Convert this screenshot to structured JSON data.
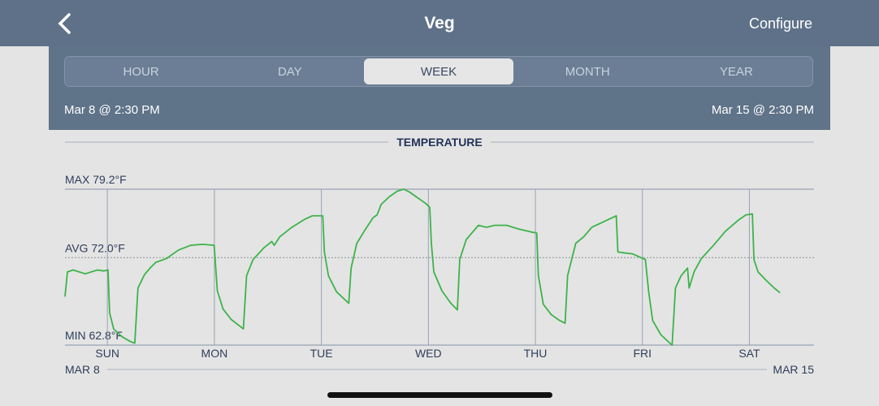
{
  "header": {
    "title": "Veg",
    "action": "Configure"
  },
  "tabs": {
    "items": [
      "HOUR",
      "DAY",
      "WEEK",
      "MONTH",
      "YEAR"
    ],
    "selected": 2
  },
  "range": {
    "start": "Mar 8 @ 2:30 PM",
    "end": "Mar 15 @ 2:30 PM"
  },
  "chart_data": {
    "type": "line",
    "title": "TEMPERATURE",
    "color": "#3db34a",
    "x": [
      0,
      0.023,
      0.076,
      0.189,
      0.303,
      0.364,
      0.402,
      0.417,
      0.455,
      0.53,
      0.606,
      0.652,
      0.682,
      0.742,
      0.795,
      0.848,
      0.947,
      1.061,
      1.174,
      1.288,
      1.394,
      1.424,
      1.477,
      1.553,
      1.667,
      1.697,
      1.758,
      1.856,
      1.932,
      1.955,
      2.008,
      2.121,
      2.235,
      2.311,
      2.409,
      2.424,
      2.462,
      2.538,
      2.652,
      2.674,
      2.727,
      2.803,
      2.879,
      2.917,
      2.955,
      3.03,
      3.106,
      3.167,
      3.22,
      3.295,
      3.371,
      3.409,
      3.424,
      3.447,
      3.523,
      3.606,
      3.667,
      3.689,
      3.75,
      3.803,
      3.864,
      3.939,
      4.015,
      4.129,
      4.242,
      4.356,
      4.409,
      4.424,
      4.47,
      4.545,
      4.621,
      4.674,
      4.697,
      4.773,
      4.848,
      4.924,
      5.0,
      5.076,
      5.152,
      5.167,
      5.227,
      5.303,
      5.424,
      5.455,
      5.492,
      5.568,
      5.644,
      5.674,
      5.705,
      5.758,
      5.818,
      5.833,
      5.879,
      5.947,
      6.061,
      6.174,
      6.288,
      6.364,
      6.424,
      6.439,
      6.477,
      6.553,
      6.629,
      6.682
    ],
    "values": [
      67.9,
      70.5,
      70.7,
      70.3,
      70.7,
      70.6,
      70.7,
      66.2,
      64.5,
      63.7,
      63.2,
      63.0,
      68.8,
      70.2,
      70.9,
      71.5,
      71.9,
      72.8,
      73.3,
      73.4,
      73.3,
      68.5,
      66.6,
      65.5,
      64.5,
      70.1,
      71.8,
      73.0,
      73.7,
      73.3,
      74.2,
      75.2,
      76.0,
      76.4,
      76.4,
      72.6,
      70.1,
      68.4,
      67.2,
      70.9,
      73.5,
      74.9,
      76.2,
      76.5,
      77.6,
      78.4,
      79.0,
      79.2,
      78.9,
      78.3,
      77.7,
      77.3,
      73.5,
      70.5,
      68.5,
      67.2,
      66.5,
      71.8,
      73.9,
      74.6,
      75.4,
      75.2,
      75.4,
      75.4,
      75.0,
      74.7,
      74.6,
      70.1,
      67.1,
      66.0,
      65.4,
      65.1,
      70.1,
      73.5,
      74.2,
      75.2,
      75.6,
      76.0,
      76.4,
      72.6,
      72.5,
      72.4,
      71.8,
      68.4,
      65.4,
      63.9,
      63.1,
      62.8,
      68.8,
      70.1,
      70.9,
      68.8,
      70.5,
      71.9,
      73.3,
      74.8,
      75.9,
      76.5,
      76.6,
      71.8,
      70.5,
      69.6,
      68.8,
      68.3
    ],
    "xlim": [
      0,
      7
    ],
    "xticks": [
      {
        "value": 0.396,
        "label": "SUN"
      },
      {
        "value": 1.396,
        "label": "MON"
      },
      {
        "value": 2.396,
        "label": "TUE"
      },
      {
        "value": 3.396,
        "label": "WED"
      },
      {
        "value": 4.396,
        "label": "THU"
      },
      {
        "value": 5.396,
        "label": "FRI"
      },
      {
        "value": 6.396,
        "label": "SAT"
      }
    ],
    "ylim": [
      62.8,
      79.2
    ],
    "yticks": [
      {
        "value": 62.8,
        "label": "MIN 62.8°F"
      },
      {
        "value": 79.2,
        "label": "MAX 79.2°F"
      }
    ],
    "average": {
      "value": 72.0,
      "label": "AVG 72.0°F"
    },
    "range_labels": [
      "MAR 8",
      "MAR 15"
    ]
  }
}
